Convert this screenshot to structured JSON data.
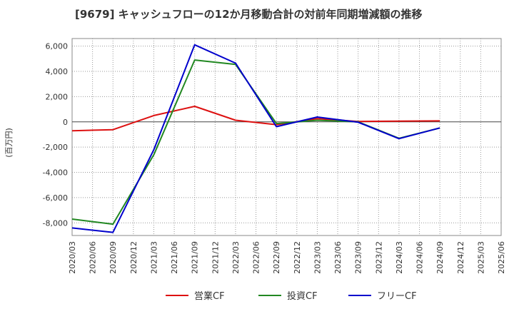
{
  "chart_data": {
    "type": "line",
    "title": "[9679]  キャッシュフローの12か月移動合計の対前年同期増減額の推移",
    "ylabel": "(百万円)",
    "xlabel": "",
    "ylim": [
      -9000,
      6600
    ],
    "yticks": [
      -8000,
      -6000,
      -4000,
      -2000,
      0,
      2000,
      4000,
      6000
    ],
    "ytick_labels": [
      "-8,000",
      "-6,000",
      "-4,000",
      "-2,000",
      "0",
      "2,000",
      "4,000",
      "6,000"
    ],
    "categories": [
      "2020/03",
      "2020/06",
      "2020/09",
      "2020/12",
      "2021/03",
      "2021/06",
      "2021/09",
      "2021/12",
      "2022/03",
      "2022/06",
      "2022/09",
      "2022/12",
      "2023/03",
      "2023/06",
      "2023/09",
      "2023/12",
      "2024/03",
      "2024/06",
      "2024/09",
      "2024/12",
      "2025/03",
      "2025/06"
    ],
    "grid": true,
    "legend_position": "bottom",
    "series": [
      {
        "name": "営業CF",
        "color": "#dd1111",
        "values": [
          -700,
          null,
          -620,
          null,
          500,
          null,
          1230,
          null,
          130,
          null,
          -220,
          null,
          250,
          null,
          30,
          null,
          60,
          null,
          80,
          null,
          null,
          null
        ]
      },
      {
        "name": "投資CF",
        "color": "#228822",
        "values": [
          -7700,
          null,
          -8100,
          null,
          -2600,
          null,
          4900,
          null,
          4550,
          null,
          -130,
          null,
          130,
          null,
          0,
          null,
          -1300,
          null,
          -480,
          null,
          null,
          null
        ]
      },
      {
        "name": "フリーCF",
        "color": "#0000cc",
        "values": [
          -8400,
          null,
          -8750,
          null,
          -2200,
          null,
          6100,
          null,
          4650,
          null,
          -380,
          null,
          380,
          null,
          -30,
          null,
          -1330,
          null,
          -480,
          null,
          null,
          null
        ]
      }
    ]
  }
}
